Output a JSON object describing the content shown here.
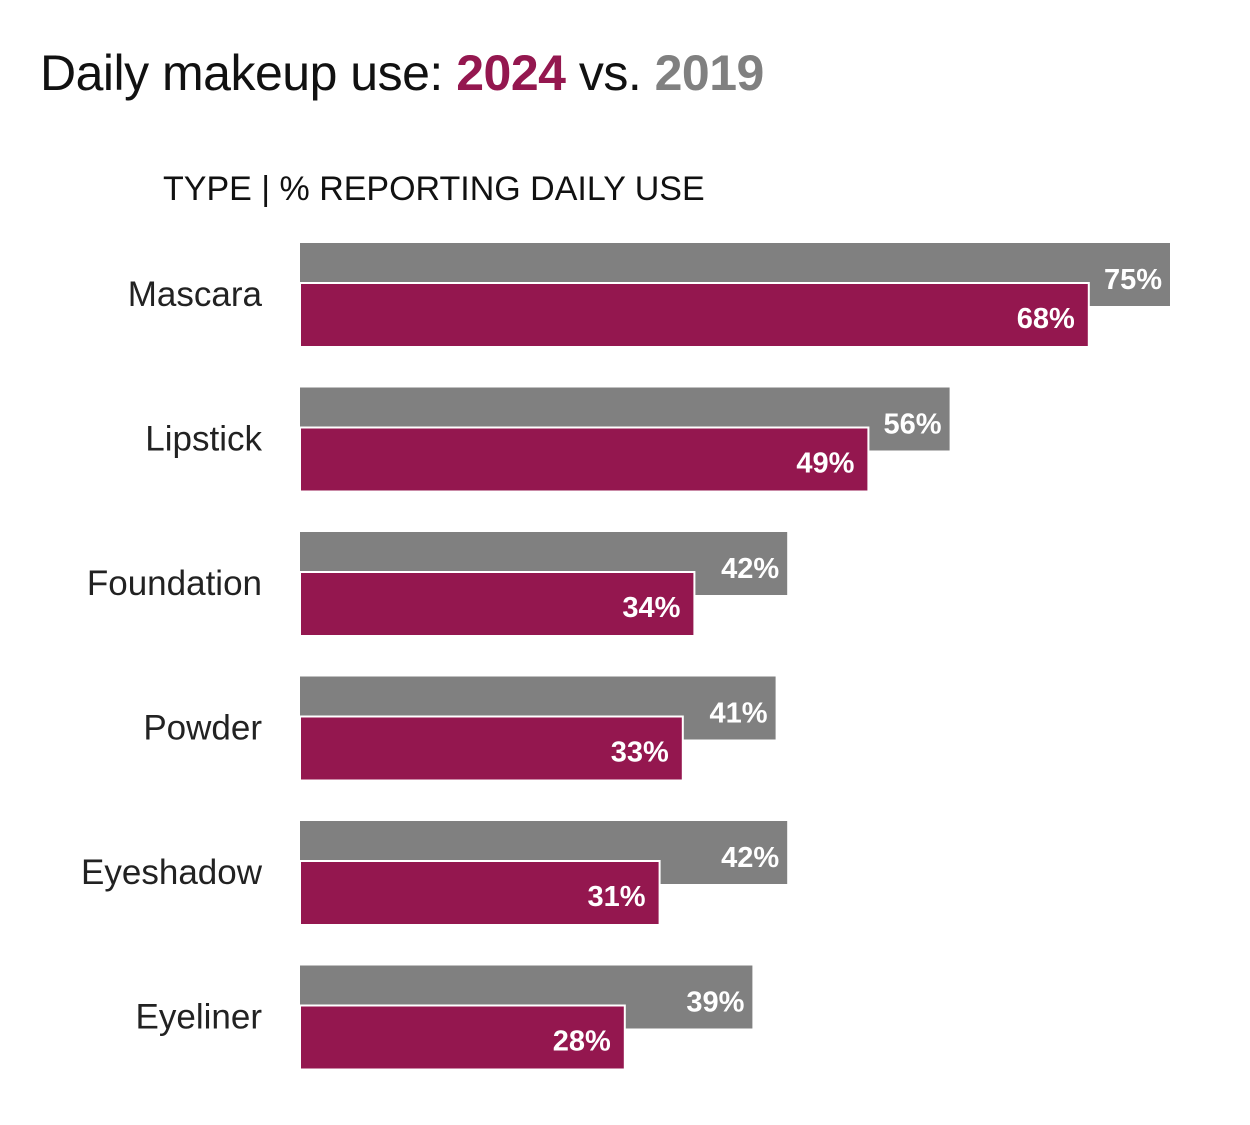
{
  "title": {
    "prefix": "Daily makeup use: ",
    "year_primary": "2024",
    "middle": " vs. ",
    "year_secondary": "2019"
  },
  "subtitle": "TYPE  |  % REPORTING DAILY USE",
  "colors": {
    "primary": "#94174f",
    "secondary": "#808080",
    "text": "#111111",
    "label_text": "#ffffff"
  },
  "chart_data": {
    "type": "bar",
    "orientation": "horizontal",
    "title": "Daily makeup use: 2024 vs. 2019",
    "subtitle": "TYPE | % REPORTING DAILY USE",
    "categories": [
      "Mascara",
      "Lipstick",
      "Foundation",
      "Powder",
      "Eyeshadow",
      "Eyeliner"
    ],
    "series": [
      {
        "name": "2019",
        "values": [
          75,
          56,
          42,
          41,
          42,
          39
        ],
        "labels": [
          "75%",
          "56%",
          "42%",
          "41%",
          "42%",
          "39%"
        ]
      },
      {
        "name": "2024",
        "values": [
          68,
          49,
          34,
          33,
          31,
          28
        ],
        "labels": [
          "68%",
          "49%",
          "34%",
          "33%",
          "31%",
          "28%"
        ]
      }
    ],
    "xlim": [
      0,
      100
    ],
    "grid": false
  }
}
